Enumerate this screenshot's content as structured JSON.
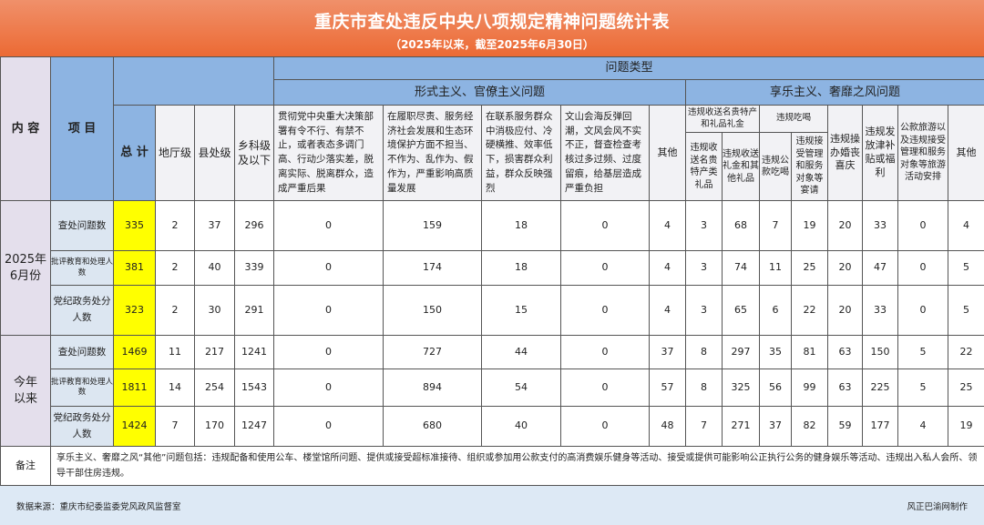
{
  "title": "重庆市查处违反中央八项规定精神问题统计表",
  "subtitle": "（2025年以来，截至2025年6月30日）",
  "headers": {
    "content": "内 容",
    "item": "项 目",
    "total": "总 计",
    "prefecture": "地厅级",
    "county": "县处级",
    "township": "乡科级及以下",
    "problem_type": "问题类型",
    "formalism": "形式主义、官僚主义问题",
    "hedonism": "享乐主义、奢靡之风问题",
    "formalism_cols": [
      "贯彻党中央重大决策部署有令不行、有禁不止，或者表态多调门高、行动少落实差，脱离实际、脱离群众，造成严重后果",
      "在履职尽责、服务经济社会发展和生态环境保护方面不担当、不作为、乱作为、假作为，严重影响高质量发展",
      "在联系服务群众中消极应付、冷硬横推、效率低下，损害群众利益，群众反映强烈",
      "文山会海反弹回潮，文风会风不实不正，督查检查考核过多过频、过度留痕，给基层造成严重负担",
      "其他"
    ],
    "gifts_group": "违规收送名贵特产和礼品礼金",
    "gifts_cols": [
      "违规收送名贵特产类礼品",
      "违规收送礼金和其他礼品"
    ],
    "dining_group": "违规吃喝",
    "dining_cols": [
      "违规公款吃喝",
      "违规接受管理和服务对象等宴请"
    ],
    "weddings": "违规操办婚丧喜庆",
    "allowances": "违规发放津补贴或福利",
    "travel": "公款旅游以及违规接受管理和服务对象等旅游活动安排",
    "other": "其他"
  },
  "groups": [
    {
      "label": "2025年6月份",
      "rows": [
        {
          "item": "查处问题数",
          "values": [
            335,
            2,
            37,
            296,
            0,
            159,
            18,
            0,
            4,
            3,
            68,
            7,
            19,
            20,
            33,
            0,
            4
          ]
        },
        {
          "item": "批评教育和处理人数",
          "values": [
            381,
            2,
            40,
            339,
            0,
            174,
            18,
            0,
            4,
            3,
            74,
            11,
            25,
            20,
            47,
            0,
            5
          ]
        },
        {
          "item": "党纪政务处分人数",
          "values": [
            323,
            2,
            30,
            291,
            0,
            150,
            15,
            0,
            4,
            3,
            65,
            6,
            22,
            20,
            33,
            0,
            5
          ]
        }
      ]
    },
    {
      "label": "今年以来",
      "rows": [
        {
          "item": "查处问题数",
          "values": [
            1469,
            11,
            217,
            1241,
            0,
            727,
            44,
            0,
            37,
            8,
            297,
            35,
            81,
            63,
            150,
            5,
            22
          ]
        },
        {
          "item": "批评教育和处理人数",
          "values": [
            1811,
            14,
            254,
            1543,
            0,
            894,
            54,
            0,
            57,
            8,
            325,
            56,
            99,
            63,
            225,
            5,
            25
          ]
        },
        {
          "item": "党纪政务处分人数",
          "values": [
            1424,
            7,
            170,
            1247,
            0,
            680,
            40,
            0,
            48,
            7,
            271,
            37,
            82,
            59,
            177,
            4,
            19
          ]
        }
      ]
    }
  ],
  "note_label": "备注",
  "note": "享乐主义、奢靡之风“其他”问题包括：违规配备和使用公车、楼堂馆所问题、提供或接受超标准接待、组织或参加用公款支付的高消费娱乐健身等活动、接受或提供可能影响公正执行公务的健身娱乐等活动、违规出入私人会所、领导干部住房违规。",
  "footer": {
    "source": "数据来源：重庆市纪委监委党风政风监督室",
    "credit": "风正巴渝网制作"
  },
  "colors": {
    "title_bar": "#ec6a34",
    "header": "#8db4e2",
    "total_highlight": "#ffff00",
    "row_label": "#dce6f1"
  }
}
